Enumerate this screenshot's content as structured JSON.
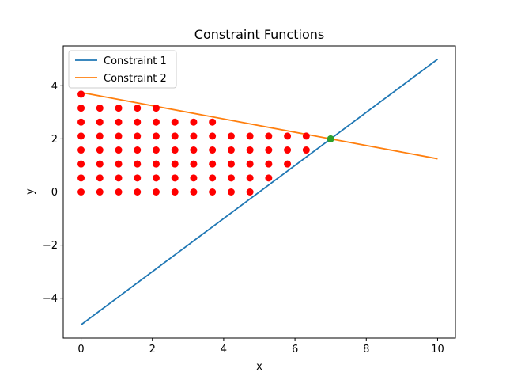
{
  "chart_data": {
    "type": "scatter",
    "title": "Constraint Functions",
    "xlabel": "x",
    "ylabel": "y",
    "xlim": [
      -0.5,
      10.5
    ],
    "ylim": [
      -5.5,
      5.5
    ],
    "xticks": [
      0,
      2,
      4,
      6,
      8,
      10
    ],
    "yticks": [
      -4,
      -2,
      0,
      2,
      4
    ],
    "grid": false,
    "legend_position": "upper-left",
    "series": [
      {
        "name": "Constraint 1",
        "kind": "line",
        "color": "#1f77b4",
        "x": [
          0,
          10
        ],
        "y": [
          -5,
          5
        ]
      },
      {
        "name": "Constraint 2",
        "kind": "line",
        "color": "#ff7f0e",
        "x": [
          0,
          10
        ],
        "y": [
          3.75,
          1.25
        ]
      }
    ],
    "feasible_points": {
      "color": "#ff0000",
      "x_grid": [
        0,
        0.526,
        1.053,
        1.579,
        2.105,
        2.632,
        3.158,
        3.684,
        4.211,
        4.737,
        5.263,
        5.789,
        6.316
      ],
      "y_grid": [
        0,
        0.526,
        1.053,
        1.579,
        2.105,
        2.632,
        3.158,
        3.684
      ],
      "row_max_col": [
        9,
        10,
        11,
        12,
        12,
        7,
        4,
        0
      ]
    },
    "optimum_point": {
      "color": "#2ca02c",
      "x": 7,
      "y": 2
    }
  }
}
